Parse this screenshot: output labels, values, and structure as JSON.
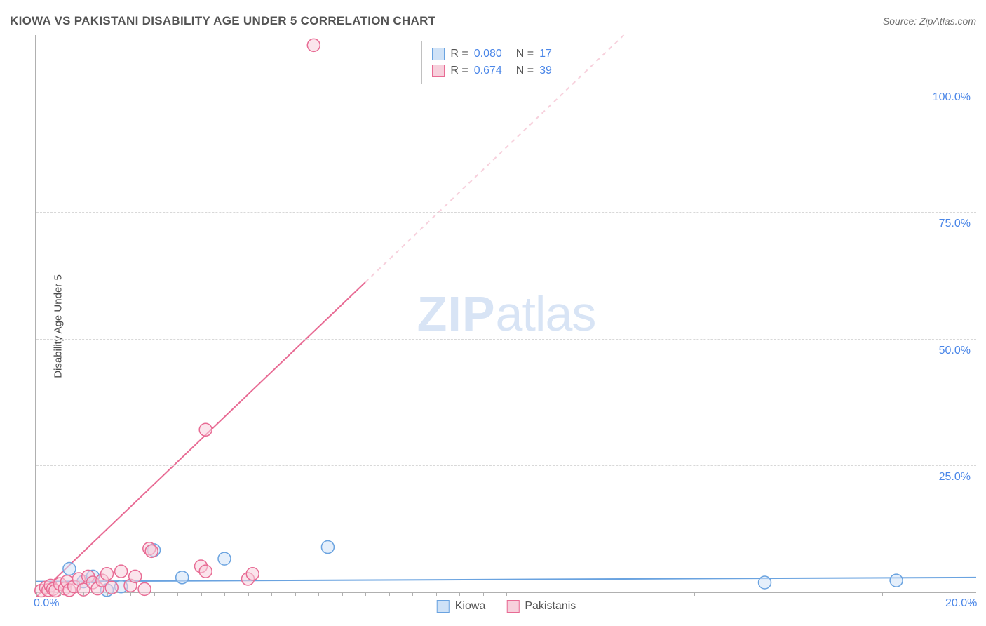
{
  "title": "KIOWA VS PAKISTANI DISABILITY AGE UNDER 5 CORRELATION CHART",
  "source": "Source: ZipAtlas.com",
  "ylabel": "Disability Age Under 5",
  "watermark_bold": "ZIP",
  "watermark_rest": "atlas",
  "chart": {
    "type": "scatter",
    "xlim": [
      0,
      20
    ],
    "ylim": [
      0,
      110
    ],
    "yticks": [
      25.0,
      50.0,
      75.0,
      100.0
    ],
    "ytick_labels": [
      "25.0%",
      "50.0%",
      "75.0%",
      "100.0%"
    ],
    "xticks": [
      0,
      10,
      20
    ],
    "xtick_labels": [
      "0.0%",
      "",
      "20.0%"
    ],
    "xtick_minor": [
      0.0,
      0.5,
      1.0,
      1.5,
      2.0,
      2.5,
      3.0,
      3.5,
      4.0,
      4.5,
      5.0,
      5.5,
      6.0,
      6.5,
      7.0,
      7.5,
      8.0,
      8.5,
      9.0,
      9.5,
      10.0,
      14.0,
      18.0
    ],
    "background_color": "#ffffff",
    "grid_color": "#d8d8d8",
    "axis_color": "#b0b0b0",
    "marker_radius": 9,
    "marker_stroke_width": 1.5,
    "line_width": 2,
    "series": [
      {
        "label": "Kiowa",
        "color_fill": "#cfe2f7",
        "color_stroke": "#6aa3e0",
        "r_value": "0.080",
        "n_value": "17",
        "trend": {
          "x1": 0.0,
          "y1": 2.0,
          "x2": 20.0,
          "y2": 2.8,
          "dash_after_x": null
        },
        "points": [
          {
            "x": 0.7,
            "y": 4.5
          },
          {
            "x": 1.0,
            "y": 2.0
          },
          {
            "x": 1.2,
            "y": 3.0
          },
          {
            "x": 1.5,
            "y": 0.3
          },
          {
            "x": 1.8,
            "y": 1.0
          },
          {
            "x": 2.5,
            "y": 8.2
          },
          {
            "x": 3.1,
            "y": 2.8
          },
          {
            "x": 4.0,
            "y": 6.5
          },
          {
            "x": 6.2,
            "y": 8.8
          },
          {
            "x": 15.5,
            "y": 1.8
          },
          {
            "x": 18.3,
            "y": 2.2
          }
        ]
      },
      {
        "label": "Pakistanis",
        "color_fill": "#f7d0dc",
        "color_stroke": "#e86b94",
        "r_value": "0.674",
        "n_value": "39",
        "trend": {
          "x1": 0.0,
          "y1": -1.0,
          "x2": 12.5,
          "y2": 110.0,
          "dash_after_x": 7.0
        },
        "points": [
          {
            "x": 0.1,
            "y": 0.2
          },
          {
            "x": 0.2,
            "y": 0.8
          },
          {
            "x": 0.25,
            "y": 0.3
          },
          {
            "x": 0.3,
            "y": 1.2
          },
          {
            "x": 0.35,
            "y": 0.5
          },
          {
            "x": 0.4,
            "y": 0.2
          },
          {
            "x": 0.5,
            "y": 1.5
          },
          {
            "x": 0.6,
            "y": 0.6
          },
          {
            "x": 0.65,
            "y": 2.0
          },
          {
            "x": 0.7,
            "y": 0.3
          },
          {
            "x": 0.8,
            "y": 1.0
          },
          {
            "x": 0.9,
            "y": 2.5
          },
          {
            "x": 1.0,
            "y": 0.4
          },
          {
            "x": 1.1,
            "y": 3.0
          },
          {
            "x": 1.2,
            "y": 1.8
          },
          {
            "x": 1.3,
            "y": 0.6
          },
          {
            "x": 1.4,
            "y": 2.2
          },
          {
            "x": 1.5,
            "y": 3.5
          },
          {
            "x": 1.6,
            "y": 0.8
          },
          {
            "x": 1.8,
            "y": 4.0
          },
          {
            "x": 2.0,
            "y": 1.2
          },
          {
            "x": 2.1,
            "y": 3.0
          },
          {
            "x": 2.3,
            "y": 0.5
          },
          {
            "x": 2.4,
            "y": 8.5
          },
          {
            "x": 2.45,
            "y": 8.0
          },
          {
            "x": 3.5,
            "y": 5.0
          },
          {
            "x": 3.6,
            "y": 4.0
          },
          {
            "x": 4.5,
            "y": 2.5
          },
          {
            "x": 4.6,
            "y": 3.5
          },
          {
            "x": 3.6,
            "y": 32.0
          },
          {
            "x": 5.9,
            "y": 108.0
          }
        ]
      }
    ]
  },
  "stats_box": {
    "r_label": "R =",
    "n_label": "N ="
  },
  "colors": {
    "title_text": "#545454",
    "source_text": "#707070",
    "value_text": "#4a86e8"
  }
}
